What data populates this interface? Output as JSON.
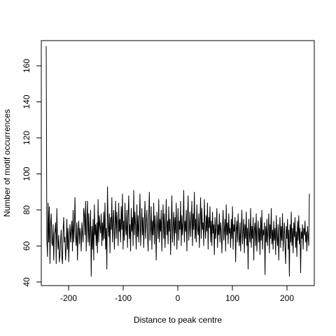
{
  "chart_data": {
    "type": "line",
    "title": "",
    "xlabel": "Distance to peak centre",
    "ylabel": "Number of motif occurrences",
    "xlim": [
      -250,
      250
    ],
    "ylim": [
      38,
      174
    ],
    "x_ticks": [
      -200,
      -100,
      0,
      100,
      200
    ],
    "x_tick_labels": [
      "-200",
      "-100",
      "0",
      "100",
      "200"
    ],
    "y_ticks": [
      40,
      60,
      80,
      100,
      120,
      140,
      160
    ],
    "y_tick_labels": [
      "40",
      "60",
      "80",
      "100",
      "120",
      "140",
      "160"
    ],
    "grid": false,
    "x_range": [
      -241,
      241
    ],
    "values": [
      171,
      64,
      54,
      84,
      62,
      82,
      50,
      72,
      78,
      62,
      60,
      72,
      52,
      67,
      68,
      73,
      50,
      81,
      64,
      58,
      66,
      51,
      55,
      63,
      69,
      54,
      50,
      68,
      76,
      62,
      65,
      52,
      60,
      75,
      58,
      70,
      51,
      64,
      72,
      62,
      68,
      74,
      57,
      80,
      62,
      71,
      87,
      65,
      60,
      73,
      52,
      68,
      74,
      61,
      70,
      66,
      57,
      73,
      67,
      62,
      81,
      77,
      66,
      85,
      57,
      74,
      85,
      62,
      78,
      60,
      68,
      80,
      43,
      71,
      58,
      75,
      52,
      83,
      66,
      72,
      60,
      73,
      56,
      86,
      62,
      77,
      71,
      67,
      78,
      60,
      73,
      63,
      79,
      64,
      84,
      58,
      70,
      47,
      93,
      72,
      65,
      78,
      56,
      76,
      69,
      87,
      62,
      74,
      80,
      58,
      71,
      85,
      64,
      79,
      72,
      60,
      84,
      68,
      75,
      62,
      82,
      69,
      89,
      58,
      74,
      63,
      84,
      70,
      66,
      80,
      59,
      76,
      88,
      64,
      72,
      57,
      81,
      68,
      76,
      60,
      91,
      66,
      79,
      71,
      58,
      83,
      65,
      77,
      62,
      74,
      89,
      60,
      70,
      81,
      66,
      76,
      59,
      73,
      85,
      64,
      72,
      80,
      68,
      57,
      76,
      90,
      63,
      70,
      82,
      58,
      74,
      66,
      84,
      61,
      77,
      69,
      52,
      79,
      71,
      64,
      86,
      62,
      75,
      68,
      80,
      57,
      73,
      83,
      64,
      78,
      59,
      70,
      86,
      66,
      74,
      61,
      82,
      68,
      75,
      55,
      73,
      88,
      62,
      71,
      79,
      60,
      76,
      67,
      84,
      58,
      70,
      81,
      63,
      74,
      69,
      85,
      60,
      77,
      66,
      72,
      91,
      62,
      74,
      68,
      80,
      57,
      76,
      88,
      63,
      71,
      79,
      65,
      74,
      85,
      60,
      78,
      69,
      90,
      64,
      75,
      62,
      83,
      70,
      66,
      78,
      59,
      74,
      87,
      64,
      81,
      69,
      73,
      60,
      86,
      71,
      64,
      77,
      68,
      84,
      58,
      76,
      70,
      82,
      62,
      74,
      60,
      79,
      67,
      72,
      55,
      76,
      64,
      70,
      81,
      59,
      72,
      66,
      78,
      62,
      73,
      68,
      56,
      71,
      80,
      63,
      69,
      75,
      57,
      83,
      66,
      73,
      61,
      78,
      67,
      70,
      59,
      75,
      64,
      82,
      58,
      72,
      68,
      76,
      51,
      69,
      74,
      62,
      78,
      65,
      60,
      73,
      57,
      70,
      80,
      61,
      68,
      75,
      56,
      72,
      64,
      79,
      60,
      70,
      47,
      75,
      66,
      62,
      81,
      59,
      71,
      64,
      76,
      52,
      69,
      73,
      60,
      78,
      57,
      67,
      74,
      62,
      70,
      55,
      76,
      63,
      80,
      58,
      69,
      66,
      73,
      44,
      71,
      62,
      75,
      60,
      68,
      78,
      56,
      72,
      64,
      81,
      61,
      69,
      58,
      74,
      63,
      70,
      55,
      77,
      65,
      60,
      72,
      52,
      68,
      76,
      59,
      71,
      63,
      78,
      57,
      66,
      73,
      60,
      50,
      71,
      64,
      75,
      58,
      69,
      43,
      72,
      62,
      79,
      60,
      70,
      56,
      73,
      65,
      76,
      59,
      68,
      54,
      74,
      63,
      77,
      61,
      70,
      45,
      68,
      64,
      72,
      58,
      70,
      66,
      74,
      62,
      68,
      57,
      71,
      65,
      60,
      89
    ]
  }
}
